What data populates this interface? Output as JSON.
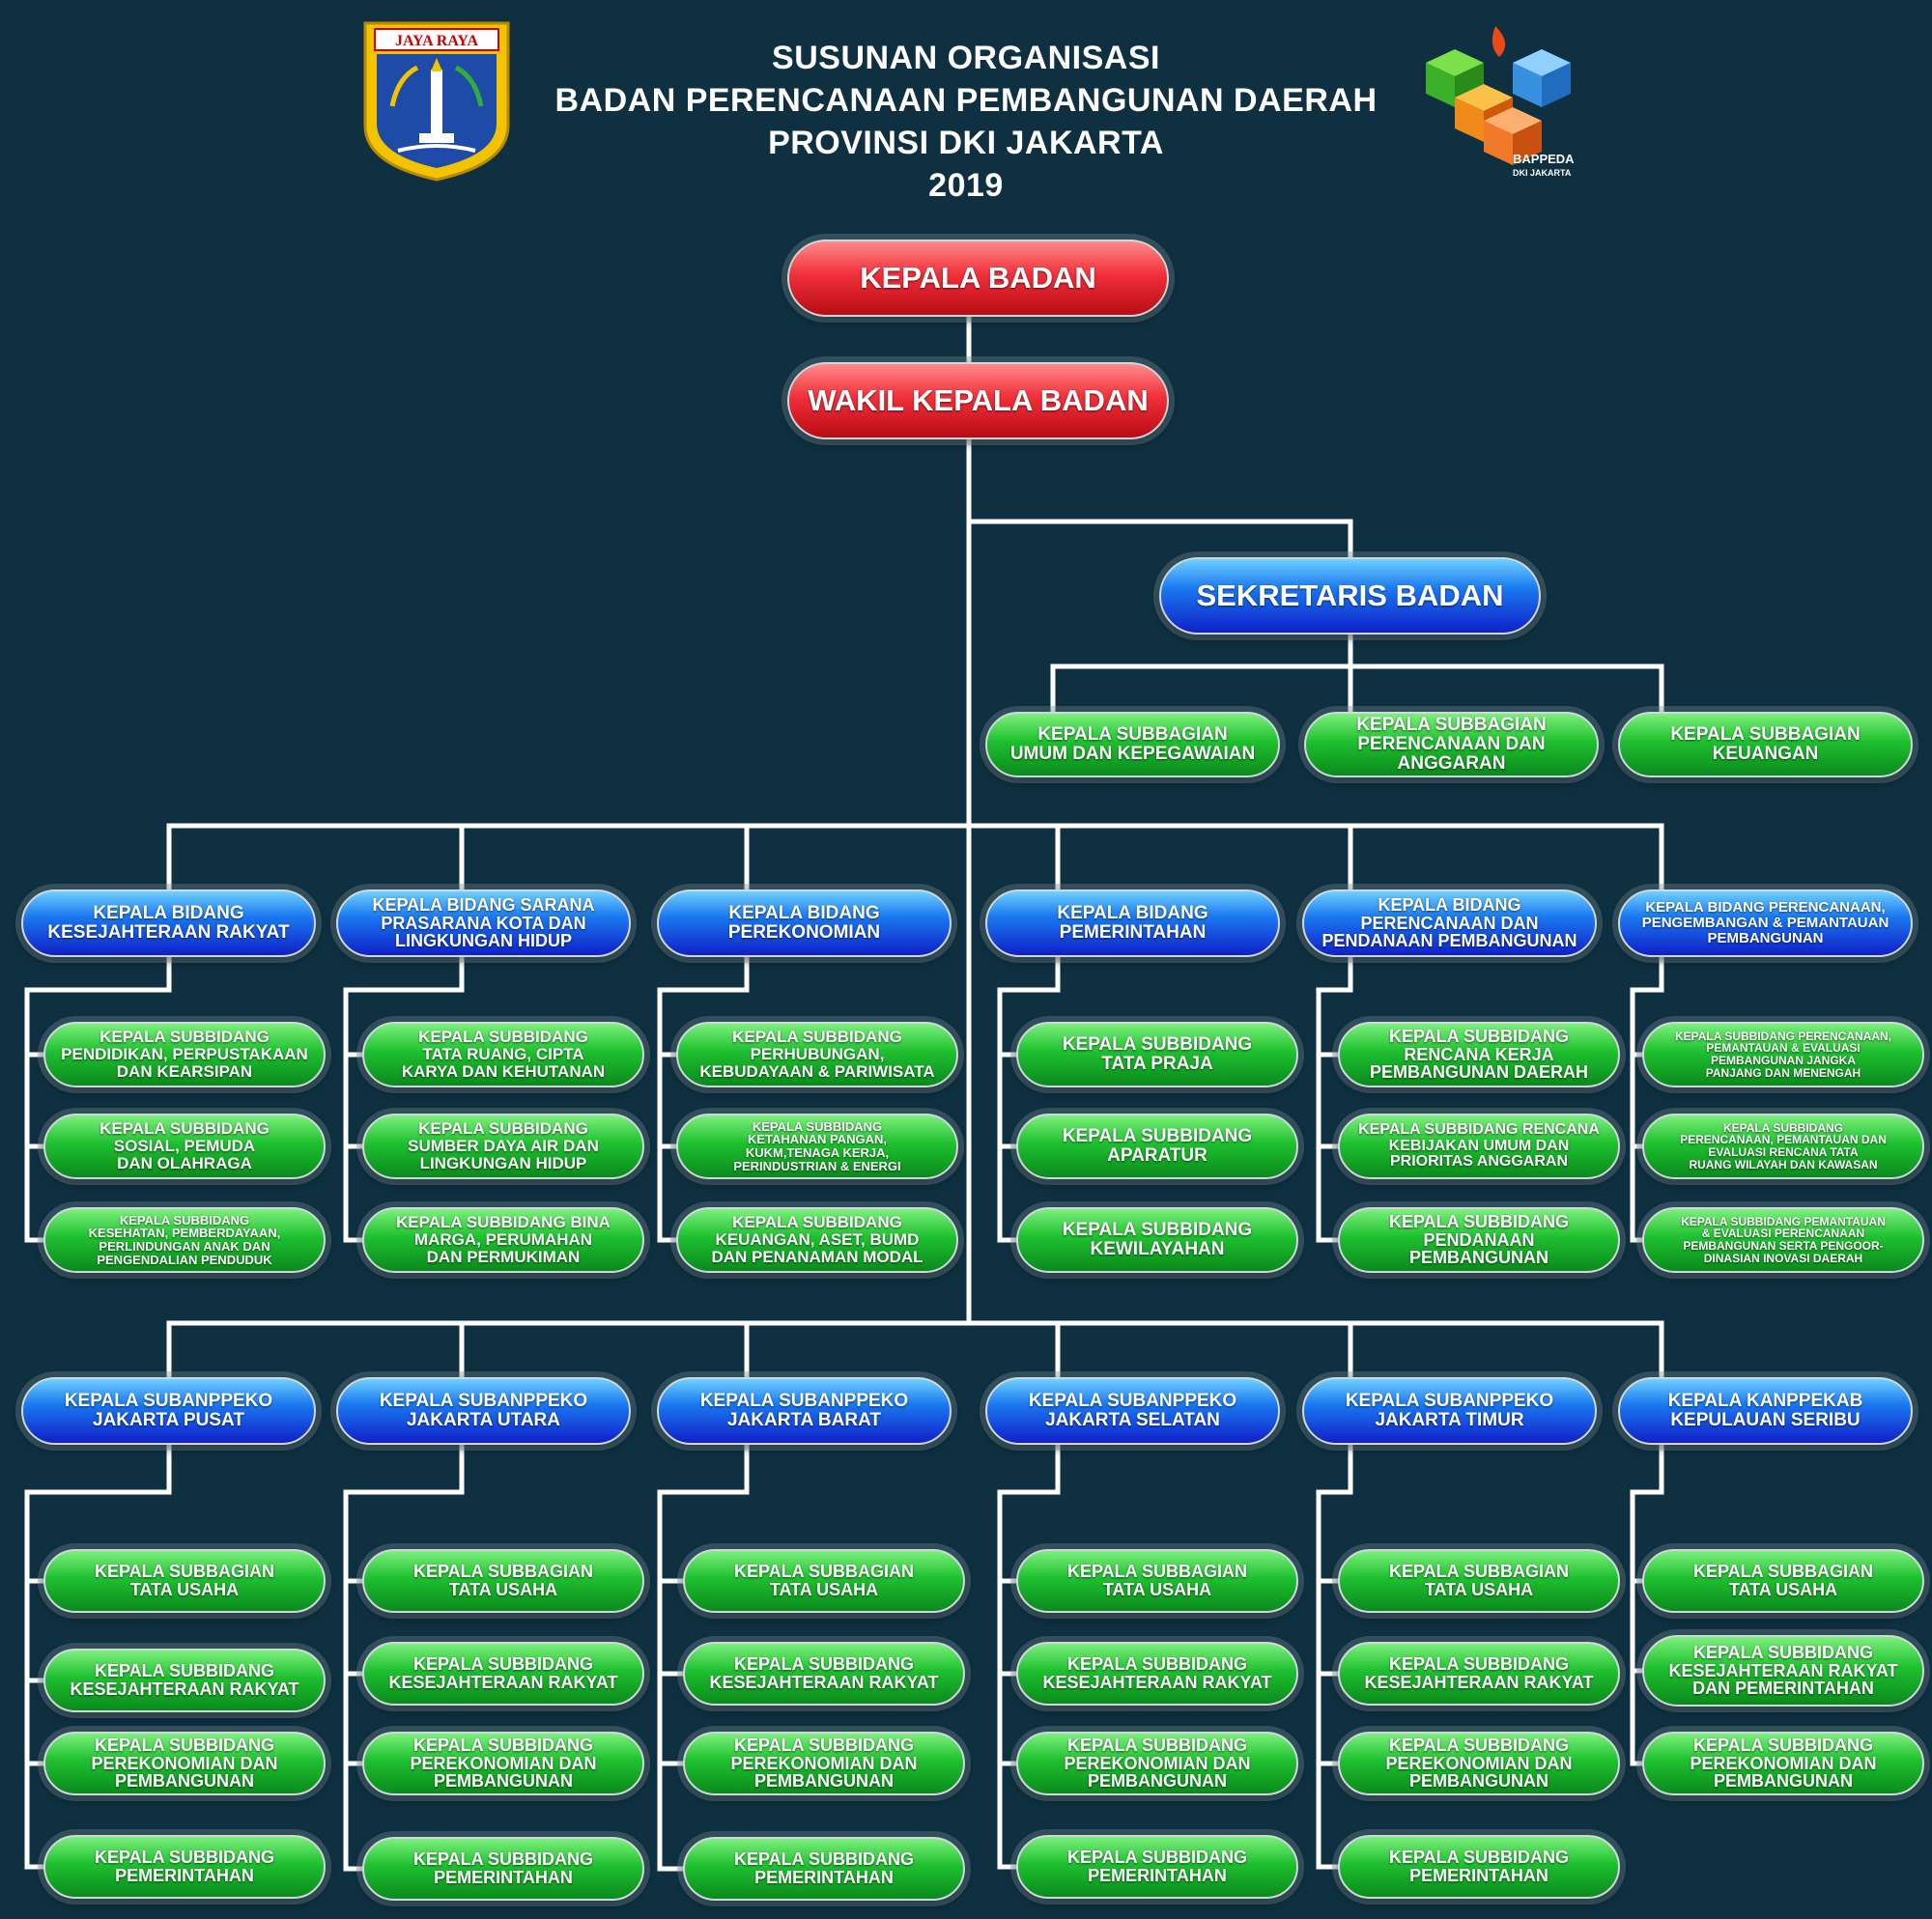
{
  "header": {
    "title_lines": [
      "SUSUNAN ORGANISASI",
      "BADAN PERENCANAAN PEMBANGUNAN DAERAH",
      "PROVINSI DKI JAKARTA",
      "2019"
    ],
    "left_logo_text": "JAYA RAYA",
    "right_logo_text": [
      "BAPPEDA",
      "DKI JAKARTA"
    ]
  },
  "colors": {
    "background": "#0e3040",
    "lines": "#ffffff",
    "top_level": "#e8222e",
    "level_2": "#1a5cf0",
    "level_3": "#1fbb2e"
  },
  "kepala_badan": "KEPALA BADAN",
  "wakil_kepala_badan": "WAKIL KEPALA BADAN",
  "sekretaris": {
    "label": "SEKRETARIS BADAN",
    "subunits": [
      "KEPALA SUBBAGIAN\nUMUM DAN KEPEGAWAIAN",
      "KEPALA SUBBAGIAN\nPERENCANAAN DAN\nANGGARAN",
      "KEPALA SUBBAGIAN\nKEUANGAN"
    ]
  },
  "bidang": [
    {
      "label": "KEPALA BIDANG\nKESEJAHTERAAN RAKYAT",
      "subunits": [
        "KEPALA SUBBIDANG\nPENDIDIKAN, PERPUSTAKAAN\nDAN KEARSIPAN",
        "KEPALA SUBBIDANG\nSOSIAL, PEMUDA\nDAN OLAHRAGA",
        "KEPALA SUBBIDANG\nKESEHATAN, PEMBERDAYAAN,\nPERLINDUNGAN ANAK DAN\nPENGENDALIAN PENDUDUK"
      ]
    },
    {
      "label": "KEPALA BIDANG SARANA\nPRASARANA KOTA DAN\nLINGKUNGAN HIDUP",
      "subunits": [
        "KEPALA SUBBIDANG\nTATA RUANG, CIPTA\nKARYA DAN KEHUTANAN",
        "KEPALA SUBBIDANG\nSUMBER DAYA AIR DAN\nLINGKUNGAN HIDUP",
        "KEPALA SUBBIDANG BINA\nMARGA, PERUMAHAN\nDAN PERMUKIMAN"
      ]
    },
    {
      "label": "KEPALA BIDANG\nPEREKONOMIAN",
      "subunits": [
        "KEPALA SUBBIDANG\nPERHUBUNGAN,\nKEBUDAYAAN & PARIWISATA",
        "KEPALA SUBBIDANG\nKETAHANAN PANGAN,\nKUKM,TENAGA KERJA,\nPERINDUSTRIAN & ENERGI",
        "KEPALA SUBBIDANG\nKEUANGAN, ASET, BUMD\nDAN PENANAMAN MODAL"
      ]
    },
    {
      "label": "KEPALA BIDANG\nPEMERINTAHAN",
      "subunits": [
        "KEPALA SUBBIDANG\nTATA PRAJA",
        "KEPALA SUBBIDANG\nAPARATUR",
        "KEPALA SUBBIDANG\nKEWILAYAHAN"
      ]
    },
    {
      "label": "KEPALA BIDANG\nPERENCANAAN DAN\nPENDANAAN PEMBANGUNAN",
      "subunits": [
        "KEPALA SUBBIDANG\nRENCANA KERJA\nPEMBANGUNAN DAERAH",
        "KEPALA SUBBIDANG RENCANA\nKEBIJAKAN UMUM DAN\nPRIORITAS ANGGARAN",
        "KEPALA SUBBIDANG\nPENDANAAN\nPEMBANGUNAN"
      ]
    },
    {
      "label": "KEPALA BIDANG PERENCANAAN,\nPENGEMBANGAN & PEMANTAUAN\nPEMBANGUNAN",
      "subunits": [
        "KEPALA SUBBIDANG PERENCANAAN,\nPEMANTAUAN & EVALUASI\nPEMBANGUNAN JANGKA\nPANJANG DAN MENENGAH",
        "KEPALA SUBBIDANG\nPERENCANAAN, PEMANTAUAN DAN\nEVALUASI RENCANA TATA\nRUANG WILAYAH DAN KAWASAN",
        "KEPALA SUBBIDANG PEMANTAUAN\n& EVALUASI PERENCANAAN\nPEMBANGUNAN SERTA PENGOOR-\nDINASIAN INOVASI DAERAH"
      ]
    }
  ],
  "subanppeko": [
    {
      "label": "KEPALA SUBANPPEKO\nJAKARTA PUSAT",
      "subunits": [
        "KEPALA SUBBAGIAN\nTATA USAHA",
        "KEPALA SUBBIDANG\nKESEJAHTERAAN RAKYAT",
        "KEPALA SUBBIDANG\nPEREKONOMIAN DAN\nPEMBANGUNAN",
        "KEPALA SUBBIDANG\nPEMERINTAHAN"
      ]
    },
    {
      "label": "KEPALA SUBANPPEKO\nJAKARTA UTARA",
      "subunits": [
        "KEPALA SUBBAGIAN\nTATA USAHA",
        "KEPALA SUBBIDANG\nKESEJAHTERAAN RAKYAT",
        "KEPALA SUBBIDANG\nPEREKONOMIAN DAN\nPEMBANGUNAN",
        "KEPALA SUBBIDANG\nPEMERINTAHAN"
      ]
    },
    {
      "label": "KEPALA SUBANPPEKO\nJAKARTA BARAT",
      "subunits": [
        "KEPALA SUBBAGIAN\nTATA USAHA",
        "KEPALA SUBBIDANG\nKESEJAHTERAAN RAKYAT",
        "KEPALA SUBBIDANG\nPEREKONOMIAN DAN\nPEMBANGUNAN",
        "KEPALA SUBBIDANG\nPEMERINTAHAN"
      ]
    },
    {
      "label": "KEPALA SUBANPPEKO\nJAKARTA SELATAN",
      "subunits": [
        "KEPALA SUBBAGIAN\nTATA USAHA",
        "KEPALA SUBBIDANG\nKESEJAHTERAAN RAKYAT",
        "KEPALA SUBBIDANG\nPEREKONOMIAN DAN\nPEMBANGUNAN",
        "KEPALA SUBBIDANG\nPEMERINTAHAN"
      ]
    },
    {
      "label": "KEPALA SUBANPPEKO\nJAKARTA TIMUR",
      "subunits": [
        "KEPALA SUBBAGIAN\nTATA USAHA",
        "KEPALA SUBBIDANG\nKESEJAHTERAAN RAKYAT",
        "KEPALA SUBBIDANG\nPEREKONOMIAN DAN\nPEMBANGUNAN",
        "KEPALA SUBBIDANG\nPEMERINTAHAN"
      ]
    },
    {
      "label": "KEPALA KANPPEKAB\nKEPULAUAN SERIBU",
      "subunits": [
        "KEPALA SUBBAGIAN\nTATA USAHA",
        "KEPALA SUBBIDANG\nKESEJAHTERAAN RAKYAT\nDAN PEMERINTAHAN",
        "KEPALA SUBBIDANG\nPEREKONOMIAN DAN\nPEMBANGUNAN"
      ]
    }
  ]
}
